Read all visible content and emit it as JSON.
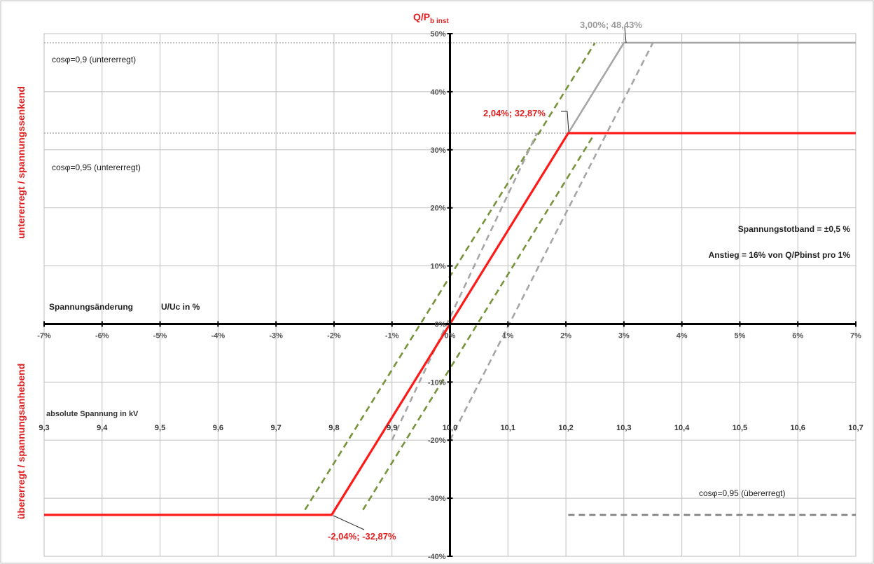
{
  "chart_data": {
    "type": "line",
    "x_label": "Spannungsänderung",
    "x_unit_label": "U/Uc in %",
    "y_title_main": "Q/P",
    "y_title_sub": "b inst",
    "y_label_top": "untererregt / spannungssenkend",
    "y_label_bottom": "übererregt / spannungsanhebend",
    "kv_axis_label": "absolute Spannung in kV",
    "x_ticks": [
      -7,
      -6,
      -5,
      -4,
      -3,
      -2,
      -1,
      0,
      1,
      2,
      3,
      4,
      5,
      6,
      7
    ],
    "x_tick_labels": [
      "-7%",
      "-6%",
      "-5%",
      "-4%",
      "-3%",
      "-2%",
      "-1%",
      "0%",
      "1%",
      "2%",
      "3%",
      "4%",
      "5%",
      "6%",
      "7%"
    ],
    "y_ticks": [
      -40,
      -30,
      -20,
      -10,
      0,
      10,
      20,
      30,
      40,
      50
    ],
    "y_tick_labels": [
      "-40%",
      "-30%",
      "-20%",
      "-10%",
      "0%",
      "10%",
      "20%",
      "30%",
      "40%",
      "50%"
    ],
    "kv_ticks": [
      "9,3",
      "9,4",
      "9,5",
      "9,6",
      "9,7",
      "9,8",
      "9,9",
      "10,0",
      "10,1",
      "10,2",
      "10,3",
      "10,4",
      "10,5",
      "10,6",
      "10,7"
    ],
    "xlim": [
      -7,
      7
    ],
    "ylim": [
      -40,
      50
    ],
    "grid": true,
    "series": [
      {
        "points": [
          [
            -7,
            -32.87
          ],
          [
            -2.04,
            -32.87
          ],
          [
            2.04,
            32.87
          ],
          [
            7,
            32.87
          ]
        ],
        "color": "#ff1a1a",
        "style": "solid"
      },
      {
        "points": [
          [
            2.04,
            32.87
          ],
          [
            3,
            48.43
          ],
          [
            7,
            48.43
          ]
        ],
        "color": "#a6a6a6",
        "style": "solid"
      },
      {
        "points": [
          [
            2.04,
            -32.87
          ],
          [
            7,
            -32.87
          ]
        ],
        "color": "#808080",
        "style": "dashed"
      },
      {
        "points": [
          [
            -2.5,
            -32.0
          ],
          [
            2.5,
            48.4
          ]
        ],
        "color": "#77933c",
        "style": "dashed"
      },
      {
        "points": [
          [
            -1.5,
            -32.0
          ],
          [
            2.5,
            32.87
          ]
        ],
        "color": "#77933c",
        "style": "dashed"
      },
      {
        "points": [
          [
            -1.0,
            -20.0
          ],
          [
            1.5,
            32.87
          ]
        ],
        "color": "#a6a6a6",
        "style": "dashed"
      },
      {
        "points": [
          [
            0,
            -20.0
          ],
          [
            3.5,
            48.43
          ]
        ],
        "color": "#a6a6a6",
        "style": "dashed"
      }
    ],
    "ref_lines": [
      {
        "y": 48.43,
        "label": "cosφ=0,9 (untererregt)"
      },
      {
        "y": 32.87,
        "label": "cosφ=0,95 (untererregt)"
      }
    ],
    "annotations": {
      "upper_red": "2,04%; 32,87%",
      "upper_grey": "3,00%; 48,43%",
      "lower_red": "-2,04%; -32,87%",
      "cos_over": "cosφ=0,95 (übererregt)",
      "deadband": "Spannungstotband = ±0,5 %",
      "slope": "Anstieg = 16% von Q/Pbinst pro 1%"
    }
  }
}
